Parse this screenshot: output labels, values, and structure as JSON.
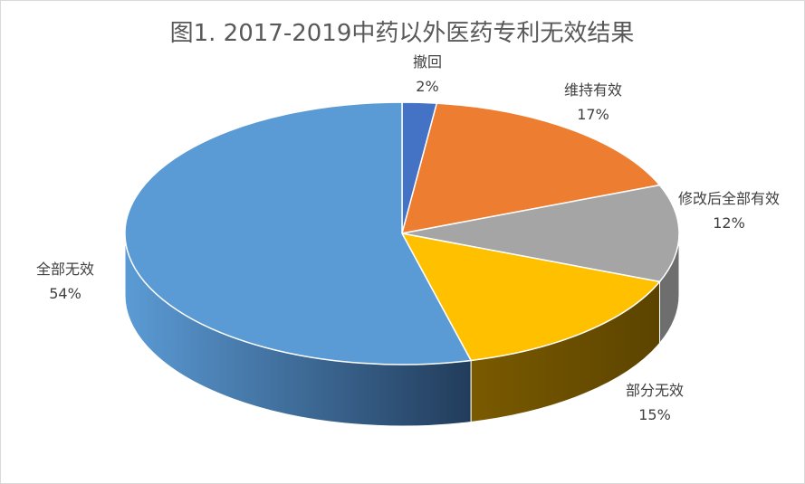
{
  "chart_data": {
    "type": "pie",
    "title": "图1. 2017-2019中药以外医药专利无效结果",
    "categories": [
      "撤回",
      "维持有效",
      "修改后全部有效",
      "部分无效",
      "全部无效"
    ],
    "values": [
      2,
      17,
      12,
      15,
      54
    ],
    "percent_labels": [
      "2%",
      "17%",
      "12%",
      "15%",
      "54%"
    ],
    "colors": [
      "#4472C4",
      "#ED7D31",
      "#A5A5A5",
      "#FFC000",
      "#5B9BD5"
    ],
    "side_colors": [
      "#2F5597",
      "#A94F15",
      "#6E6E6E",
      "#7A5C00",
      "#41719C"
    ],
    "legend": "none",
    "style": "3d-pie"
  }
}
